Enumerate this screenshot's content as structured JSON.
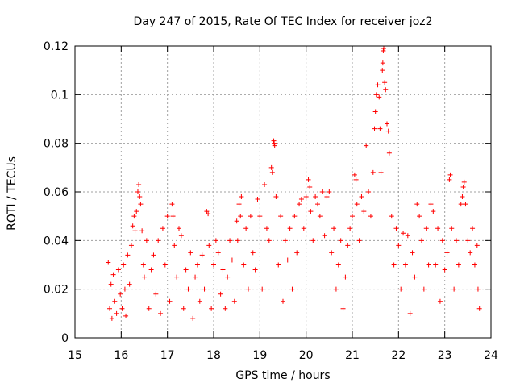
{
  "chart_data": {
    "type": "scatter",
    "title": "Day 247 of 2015, Rate Of TEC Index for receiver joz2",
    "xlabel": "GPS time / hours",
    "ylabel": "ROTI / TECUs",
    "xlim": [
      15,
      24
    ],
    "ylim": [
      0,
      0.12
    ],
    "x_ticks": [
      15,
      16,
      17,
      18,
      19,
      20,
      21,
      22,
      23,
      24
    ],
    "x_tick_labels": [
      "15",
      "16",
      "17",
      "18",
      "19",
      "20",
      "21",
      "22",
      "23",
      "24"
    ],
    "y_ticks": [
      0,
      0.02,
      0.04,
      0.06,
      0.08,
      0.1,
      0.12
    ],
    "y_tick_labels": [
      "0",
      "0.02",
      "0.04",
      "0.06",
      "0.08",
      "0.1",
      "0.12"
    ],
    "grid": true,
    "marker": "+",
    "series": [
      {
        "name": "ROTI",
        "color": "#ff0000",
        "points": [
          [
            15.72,
            0.031
          ],
          [
            15.75,
            0.012
          ],
          [
            15.78,
            0.022
          ],
          [
            15.8,
            0.008
          ],
          [
            15.83,
            0.026
          ],
          [
            15.86,
            0.015
          ],
          [
            15.9,
            0.01
          ],
          [
            15.94,
            0.028
          ],
          [
            15.98,
            0.018
          ],
          [
            16.02,
            0.012
          ],
          [
            16.05,
            0.03
          ],
          [
            16.08,
            0.02
          ],
          [
            16.1,
            0.009
          ],
          [
            16.14,
            0.034
          ],
          [
            16.18,
            0.022
          ],
          [
            16.22,
            0.038
          ],
          [
            16.25,
            0.046
          ],
          [
            16.28,
            0.05
          ],
          [
            16.3,
            0.044
          ],
          [
            16.33,
            0.052
          ],
          [
            16.36,
            0.06
          ],
          [
            16.38,
            0.063
          ],
          [
            16.4,
            0.058
          ],
          [
            16.42,
            0.055
          ],
          [
            16.45,
            0.044
          ],
          [
            16.48,
            0.03
          ],
          [
            16.5,
            0.025
          ],
          [
            16.55,
            0.04
          ],
          [
            16.6,
            0.012
          ],
          [
            16.65,
            0.028
          ],
          [
            16.7,
            0.034
          ],
          [
            16.75,
            0.018
          ],
          [
            16.8,
            0.04
          ],
          [
            16.85,
            0.01
          ],
          [
            16.9,
            0.045
          ],
          [
            16.95,
            0.03
          ],
          [
            17.0,
            0.05
          ],
          [
            17.05,
            0.015
          ],
          [
            17.1,
            0.055
          ],
          [
            17.12,
            0.05
          ],
          [
            17.15,
            0.038
          ],
          [
            17.2,
            0.025
          ],
          [
            17.25,
            0.045
          ],
          [
            17.3,
            0.042
          ],
          [
            17.35,
            0.012
          ],
          [
            17.4,
            0.028
          ],
          [
            17.45,
            0.02
          ],
          [
            17.5,
            0.035
          ],
          [
            17.55,
            0.008
          ],
          [
            17.6,
            0.025
          ],
          [
            17.65,
            0.03
          ],
          [
            17.7,
            0.015
          ],
          [
            17.75,
            0.034
          ],
          [
            17.8,
            0.02
          ],
          [
            17.85,
            0.052
          ],
          [
            17.88,
            0.051
          ],
          [
            17.9,
            0.038
          ],
          [
            17.95,
            0.012
          ],
          [
            18.0,
            0.03
          ],
          [
            18.05,
            0.04
          ],
          [
            18.1,
            0.035
          ],
          [
            18.15,
            0.018
          ],
          [
            18.2,
            0.028
          ],
          [
            18.25,
            0.012
          ],
          [
            18.3,
            0.025
          ],
          [
            18.35,
            0.04
          ],
          [
            18.4,
            0.032
          ],
          [
            18.45,
            0.015
          ],
          [
            18.5,
            0.048
          ],
          [
            18.52,
            0.04
          ],
          [
            18.55,
            0.055
          ],
          [
            18.58,
            0.05
          ],
          [
            18.6,
            0.058
          ],
          [
            18.65,
            0.03
          ],
          [
            18.7,
            0.045
          ],
          [
            18.75,
            0.02
          ],
          [
            18.8,
            0.05
          ],
          [
            18.85,
            0.035
          ],
          [
            18.9,
            0.028
          ],
          [
            18.95,
            0.057
          ],
          [
            19.0,
            0.05
          ],
          [
            19.05,
            0.02
          ],
          [
            19.1,
            0.063
          ],
          [
            19.15,
            0.045
          ],
          [
            19.2,
            0.04
          ],
          [
            19.25,
            0.07
          ],
          [
            19.27,
            0.068
          ],
          [
            19.3,
            0.081
          ],
          [
            19.31,
            0.08
          ],
          [
            19.32,
            0.079
          ],
          [
            19.35,
            0.058
          ],
          [
            19.4,
            0.03
          ],
          [
            19.45,
            0.05
          ],
          [
            19.5,
            0.015
          ],
          [
            19.55,
            0.04
          ],
          [
            19.6,
            0.032
          ],
          [
            19.65,
            0.045
          ],
          [
            19.7,
            0.02
          ],
          [
            19.75,
            0.05
          ],
          [
            19.8,
            0.035
          ],
          [
            19.85,
            0.055
          ],
          [
            19.9,
            0.057
          ],
          [
            19.95,
            0.045
          ],
          [
            20.0,
            0.058
          ],
          [
            20.05,
            0.065
          ],
          [
            20.08,
            0.062
          ],
          [
            20.1,
            0.052
          ],
          [
            20.15,
            0.04
          ],
          [
            20.2,
            0.058
          ],
          [
            20.25,
            0.055
          ],
          [
            20.3,
            0.05
          ],
          [
            20.35,
            0.06
          ],
          [
            20.4,
            0.042
          ],
          [
            20.45,
            0.058
          ],
          [
            20.5,
            0.06
          ],
          [
            20.55,
            0.035
          ],
          [
            20.6,
            0.045
          ],
          [
            20.65,
            0.02
          ],
          [
            20.7,
            0.03
          ],
          [
            20.75,
            0.04
          ],
          [
            20.8,
            0.012
          ],
          [
            20.85,
            0.025
          ],
          [
            20.9,
            0.038
          ],
          [
            20.95,
            0.045
          ],
          [
            21.0,
            0.05
          ],
          [
            21.05,
            0.067
          ],
          [
            21.08,
            0.065
          ],
          [
            21.1,
            0.055
          ],
          [
            21.15,
            0.04
          ],
          [
            21.2,
            0.058
          ],
          [
            21.25,
            0.052
          ],
          [
            21.3,
            0.079
          ],
          [
            21.35,
            0.06
          ],
          [
            21.4,
            0.05
          ],
          [
            21.45,
            0.068
          ],
          [
            21.48,
            0.086
          ],
          [
            21.5,
            0.093
          ],
          [
            21.52,
            0.1
          ],
          [
            21.55,
            0.104
          ],
          [
            21.58,
            0.099
          ],
          [
            21.6,
            0.086
          ],
          [
            21.62,
            0.068
          ],
          [
            21.65,
            0.11
          ],
          [
            21.66,
            0.113
          ],
          [
            21.67,
            0.118
          ],
          [
            21.68,
            0.119
          ],
          [
            21.7,
            0.105
          ],
          [
            21.72,
            0.102
          ],
          [
            21.75,
            0.088
          ],
          [
            21.78,
            0.085
          ],
          [
            21.8,
            0.076
          ],
          [
            21.85,
            0.05
          ],
          [
            21.9,
            0.03
          ],
          [
            21.95,
            0.045
          ],
          [
            22.0,
            0.038
          ],
          [
            22.05,
            0.02
          ],
          [
            22.1,
            0.043
          ],
          [
            22.15,
            0.03
          ],
          [
            22.2,
            0.042
          ],
          [
            22.25,
            0.01
          ],
          [
            22.3,
            0.035
          ],
          [
            22.35,
            0.025
          ],
          [
            22.4,
            0.055
          ],
          [
            22.45,
            0.05
          ],
          [
            22.5,
            0.04
          ],
          [
            22.55,
            0.02
          ],
          [
            22.6,
            0.045
          ],
          [
            22.65,
            0.03
          ],
          [
            22.7,
            0.055
          ],
          [
            22.75,
            0.052
          ],
          [
            22.8,
            0.03
          ],
          [
            22.85,
            0.045
          ],
          [
            22.9,
            0.015
          ],
          [
            22.95,
            0.04
          ],
          [
            23.0,
            0.028
          ],
          [
            23.05,
            0.035
          ],
          [
            23.1,
            0.065
          ],
          [
            23.12,
            0.067
          ],
          [
            23.15,
            0.045
          ],
          [
            23.2,
            0.02
          ],
          [
            23.25,
            0.04
          ],
          [
            23.3,
            0.03
          ],
          [
            23.35,
            0.055
          ],
          [
            23.38,
            0.058
          ],
          [
            23.4,
            0.062
          ],
          [
            23.42,
            0.064
          ],
          [
            23.45,
            0.055
          ],
          [
            23.5,
            0.04
          ],
          [
            23.55,
            0.035
          ],
          [
            23.6,
            0.045
          ],
          [
            23.65,
            0.03
          ],
          [
            23.7,
            0.038
          ],
          [
            23.72,
            0.02
          ],
          [
            23.75,
            0.012
          ]
        ]
      }
    ]
  }
}
